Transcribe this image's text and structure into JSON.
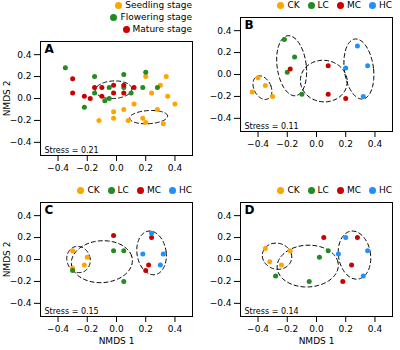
{
  "chart_data": [
    {
      "type": "scatter",
      "title": "A",
      "annotations": [
        "Stress = 0.21"
      ],
      "y_label": "NMDS 2",
      "series": [
        {
          "name": "Seedling stage",
          "color": "#FFA500",
          "values": [
            [
              0.35,
              0.02
            ],
            [
              0.4,
              -0.05
            ],
            [
              0.28,
              -0.1
            ],
            [
              0.18,
              -0.18
            ],
            [
              0.08,
              -0.2
            ],
            [
              -0.02,
              -0.18
            ],
            [
              0.2,
              -0.22
            ],
            [
              0.32,
              -0.23
            ],
            [
              -0.02,
              -0.12
            ],
            [
              0.12,
              -0.05
            ],
            [
              0.24,
              0.05
            ],
            [
              0.3,
              0.12
            ],
            [
              0.34,
              0.2
            ],
            [
              0.2,
              0.2
            ],
            [
              -0.12,
              -0.2
            ],
            [
              0.05,
              -0.1
            ]
          ]
        },
        {
          "name": "Flowering stage",
          "color": "#228B22",
          "values": [
            [
              -0.35,
              0.28
            ],
            [
              -0.15,
              0.2
            ],
            [
              0.05,
              0.22
            ],
            [
              0.2,
              0.24
            ],
            [
              -0.05,
              0.1
            ],
            [
              0.05,
              0.1
            ],
            [
              -0.15,
              0.05
            ],
            [
              -0.05,
              0.0
            ],
            [
              0.1,
              0.05
            ],
            [
              0.18,
              0.1
            ],
            [
              0.28,
              0.1
            ],
            [
              -0.22,
              -0.08
            ],
            [
              -0.08,
              -0.02
            ]
          ]
        },
        {
          "name": "Mature stage",
          "color": "#CC0000",
          "values": [
            [
              -0.3,
              0.18
            ],
            [
              -0.3,
              0.05
            ],
            [
              -0.22,
              0.02
            ],
            [
              -0.15,
              0.1
            ],
            [
              -0.1,
              0.1
            ],
            [
              -0.02,
              0.12
            ],
            [
              0.05,
              0.12
            ],
            [
              0.12,
              0.1
            ],
            [
              -0.1,
              0.02
            ],
            [
              -0.02,
              0.05
            ],
            [
              0.05,
              0.05
            ],
            [
              -0.18,
              0.0
            ]
          ]
        }
      ],
      "ellipses": [
        {
          "cx": -0.02,
          "cy": 0.08,
          "w": 0.25,
          "h": 0.16,
          "angle": 5
        },
        {
          "cx": 0.22,
          "cy": -0.17,
          "w": 0.26,
          "h": 0.12,
          "angle": 5
        }
      ],
      "xlim": [
        -0.52,
        0.52
      ],
      "ylim": [
        -0.52,
        0.52
      ],
      "xticks": [
        -0.4,
        -0.2,
        {
          "value": 0,
          "label": "0.0"
        },
        0.2,
        0.4
      ],
      "yticks": [
        -0.4,
        -0.2,
        {
          "value": 0,
          "label": "0.0"
        },
        0.2,
        0.4
      ],
      "legend": "top right"
    },
    {
      "type": "scatter",
      "title": "B",
      "annotations": [
        "Stress = 0.11"
      ],
      "series": [
        {
          "name": "CK",
          "color": "#FFA500",
          "values": [
            [
              -0.4,
              -0.03
            ],
            [
              -0.35,
              -0.1
            ],
            [
              -0.3,
              -0.2
            ],
            [
              -0.44,
              -0.16
            ]
          ]
        },
        {
          "name": "LC",
          "color": "#228B22",
          "values": [
            [
              -0.22,
              0.32
            ],
            [
              -0.15,
              0.16
            ],
            [
              -0.2,
              0.02
            ],
            [
              -0.1,
              -0.18
            ]
          ]
        },
        {
          "name": "MC",
          "color": "#CC0000",
          "values": [
            [
              -0.18,
              0.05
            ],
            [
              0.08,
              0.08
            ],
            [
              0.08,
              -0.18
            ],
            [
              0.2,
              -0.22
            ]
          ]
        },
        {
          "name": "HC",
          "color": "#1E90FF",
          "values": [
            [
              0.28,
              0.26
            ],
            [
              0.35,
              0.08
            ],
            [
              0.32,
              -0.2
            ],
            [
              0.2,
              0.06
            ]
          ]
        }
      ],
      "ellipses": [
        {
          "cx": -0.37,
          "cy": -0.12,
          "w": 0.12,
          "h": 0.22,
          "angle": 15
        },
        {
          "cx": -0.17,
          "cy": 0.08,
          "w": 0.2,
          "h": 0.55,
          "angle": 5
        },
        {
          "cx": 0.05,
          "cy": -0.06,
          "w": 0.32,
          "h": 0.38,
          "angle": 5
        },
        {
          "cx": 0.29,
          "cy": 0.05,
          "w": 0.2,
          "h": 0.55,
          "angle": 5
        }
      ],
      "xlim": [
        -0.52,
        0.52
      ],
      "ylim": [
        -0.52,
        0.52
      ],
      "xticks": [
        -0.4,
        -0.2,
        {
          "value": 0,
          "label": "0.0"
        },
        0.2,
        0.4
      ],
      "yticks": [
        -0.4,
        -0.2,
        {
          "value": 0,
          "label": "0.0"
        },
        0.2,
        0.4
      ],
      "legend": "top right"
    },
    {
      "type": "scatter",
      "title": "C",
      "annotations": [
        "Stress = 0.15"
      ],
      "x_label": "NMDS 1",
      "y_label": "NMDS 2",
      "series": [
        {
          "name": "CK",
          "color": "#FFA500",
          "values": [
            [
              -0.3,
              0.08
            ],
            [
              -0.2,
              0.02
            ],
            [
              -0.22,
              -0.05
            ],
            [
              -0.3,
              -0.08
            ]
          ]
        },
        {
          "name": "LC",
          "color": "#228B22",
          "values": [
            [
              -0.3,
              -0.1
            ],
            [
              -0.02,
              0.08
            ],
            [
              0.05,
              -0.2
            ],
            [
              0.05,
              0.08
            ]
          ]
        },
        {
          "name": "MC",
          "color": "#CC0000",
          "values": [
            [
              -0.02,
              0.22
            ],
            [
              0.24,
              0.2
            ],
            [
              0.22,
              -0.05
            ],
            [
              0.2,
              -0.1
            ]
          ]
        },
        {
          "name": "HC",
          "color": "#1E90FF",
          "values": [
            [
              0.24,
              0.24
            ],
            [
              0.32,
              0.05
            ],
            [
              0.3,
              -0.05
            ],
            [
              0.18,
              0.05
            ]
          ]
        }
      ],
      "ellipses": [
        {
          "cx": -0.26,
          "cy": 0.0,
          "w": 0.16,
          "h": 0.24,
          "angle": 5
        },
        {
          "cx": -0.1,
          "cy": -0.02,
          "w": 0.42,
          "h": 0.38,
          "angle": 15
        },
        {
          "cx": 0.24,
          "cy": 0.06,
          "w": 0.2,
          "h": 0.4,
          "angle": 5
        }
      ],
      "xlim": [
        -0.52,
        0.52
      ],
      "ylim": [
        -0.52,
        0.52
      ],
      "xticks": [
        -0.4,
        -0.2,
        {
          "value": 0,
          "label": "0.0"
        },
        0.2,
        0.4
      ],
      "yticks": [
        -0.4,
        -0.2,
        {
          "value": 0,
          "label": "0.0"
        },
        0.2,
        0.4
      ],
      "legend": "top right"
    },
    {
      "type": "scatter",
      "title": "D",
      "annotations": [
        "Stress = 0.14"
      ],
      "x_label": "NMDS 1",
      "series": [
        {
          "name": "CK",
          "color": "#FFA500",
          "values": [
            [
              -0.35,
              0.1
            ],
            [
              -0.18,
              0.08
            ],
            [
              -0.24,
              -0.05
            ],
            [
              -0.32,
              -0.02
            ]
          ]
        },
        {
          "name": "LC",
          "color": "#228B22",
          "values": [
            [
              -0.28,
              -0.15
            ],
            [
              0.02,
              0.02
            ],
            [
              -0.05,
              -0.2
            ],
            [
              0.08,
              0.08
            ]
          ]
        },
        {
          "name": "MC",
          "color": "#CC0000",
          "values": [
            [
              0.05,
              0.2
            ],
            [
              0.28,
              0.2
            ],
            [
              0.24,
              -0.05
            ],
            [
              0.18,
              -0.2
            ]
          ]
        },
        {
          "name": "HC",
          "color": "#1E90FF",
          "values": [
            [
              0.2,
              0.2
            ],
            [
              0.35,
              0.08
            ],
            [
              0.32,
              -0.15
            ],
            [
              0.15,
              0.05
            ]
          ]
        }
      ],
      "ellipses": [
        {
          "cx": -0.27,
          "cy": 0.03,
          "w": 0.2,
          "h": 0.24,
          "angle": 10
        },
        {
          "cx": -0.06,
          "cy": -0.06,
          "w": 0.42,
          "h": 0.38,
          "angle": 10
        },
        {
          "cx": 0.26,
          "cy": 0.04,
          "w": 0.22,
          "h": 0.44,
          "angle": 5
        }
      ],
      "xlim": [
        -0.52,
        0.52
      ],
      "ylim": [
        -0.52,
        0.52
      ],
      "xticks": [
        -0.4,
        -0.2,
        {
          "value": 0,
          "label": "0.0"
        },
        0.2,
        0.4
      ],
      "yticks": [
        -0.4,
        -0.2,
        {
          "value": 0,
          "label": "0.0"
        },
        0.2,
        0.4
      ],
      "legend": "top right"
    }
  ]
}
